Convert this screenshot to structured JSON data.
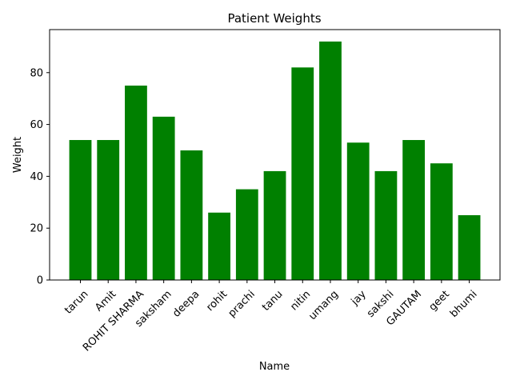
{
  "chart_data": {
    "type": "bar",
    "title": "Patient Weights",
    "xlabel": "Name",
    "ylabel": "Weight",
    "categories": [
      "tarun",
      "Amit",
      "ROHIT SHARMA",
      "saksham",
      "deepa",
      "rohit",
      "prachi",
      "tanu",
      "nitin",
      "umang",
      "jay",
      "sakshi",
      "GAUTAM",
      "geet",
      "bhumi"
    ],
    "values": [
      54,
      54,
      75,
      63,
      50,
      26,
      35,
      42,
      82,
      92,
      53,
      42,
      54,
      45,
      25
    ],
    "ylim": [
      0,
      96.6
    ],
    "yticks": [
      0,
      20,
      40,
      60,
      80
    ],
    "bar_color": "#008000",
    "grid": false,
    "x_tick_rotation": 45
  }
}
